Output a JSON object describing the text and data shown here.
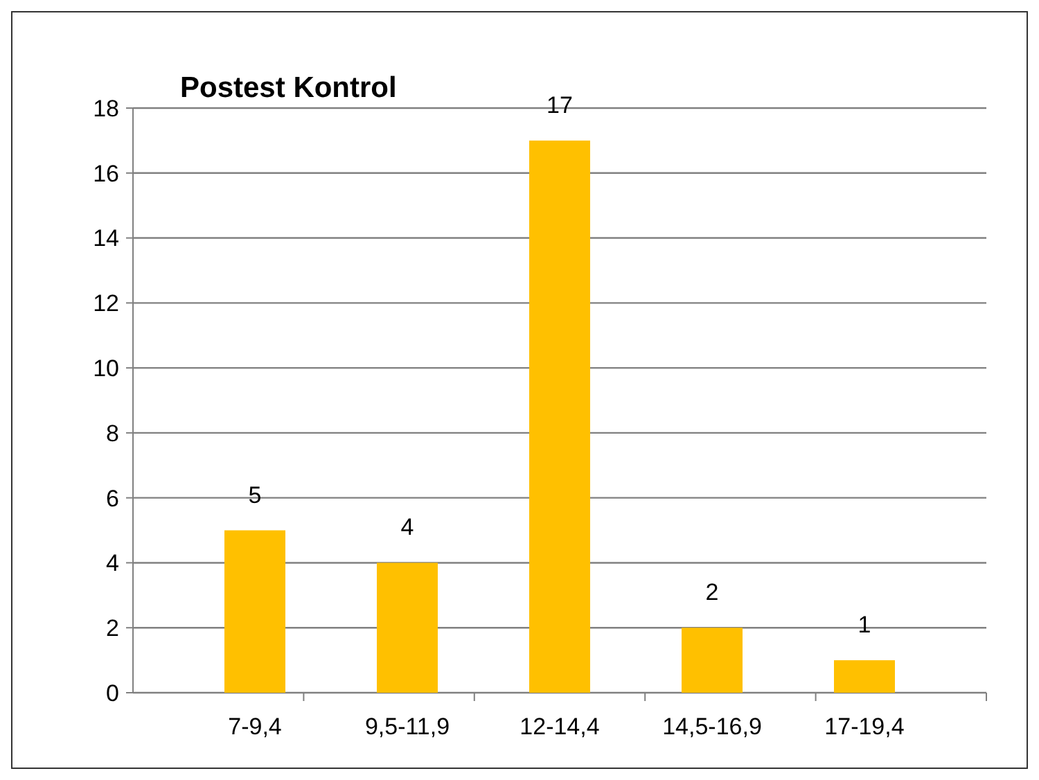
{
  "chart_data": {
    "type": "bar",
    "title": "Postest Kontrol",
    "categories": [
      "7-9,4",
      "9,5-11,9",
      "12-14,4",
      "14,5-16,9",
      "17-19,4"
    ],
    "values": [
      5,
      4,
      17,
      2,
      1
    ],
    "color": "#ffc000",
    "ylim": [
      0,
      18
    ],
    "yticks": [
      0,
      2,
      4,
      6,
      8,
      10,
      12,
      14,
      16,
      18
    ],
    "grid": "y",
    "data_labels": true
  }
}
